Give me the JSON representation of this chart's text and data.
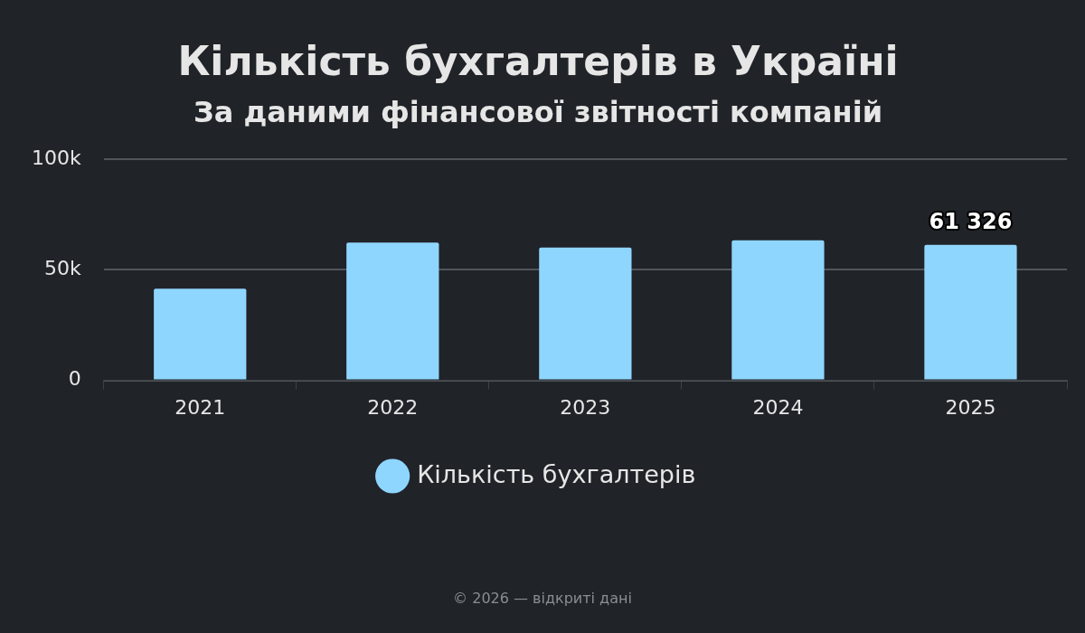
{
  "chart_data": {
    "type": "bar",
    "title": "Кількість бухгалтерів в Україні",
    "subtitle": "За даними фінансової звітності компаній",
    "categories": [
      "2021",
      "2022",
      "2023",
      "2024",
      "2025"
    ],
    "series": [
      {
        "name": "Кількість бухгалтерів",
        "color": "#8fd6ff",
        "values": [
          41500,
          62300,
          60100,
          63400,
          61326
        ],
        "value_labels": [
          null,
          null,
          null,
          null,
          "61 326"
        ]
      }
    ],
    "ylim": [
      0,
      100000
    ],
    "yticks": [
      {
        "value": 0,
        "label": "0"
      },
      {
        "value": 50000,
        "label": "50k"
      },
      {
        "value": 100000,
        "label": "100k"
      }
    ],
    "grid": "y",
    "legend": "bottom",
    "annotations": [
      "© 2026 — відкриті дані"
    ]
  }
}
